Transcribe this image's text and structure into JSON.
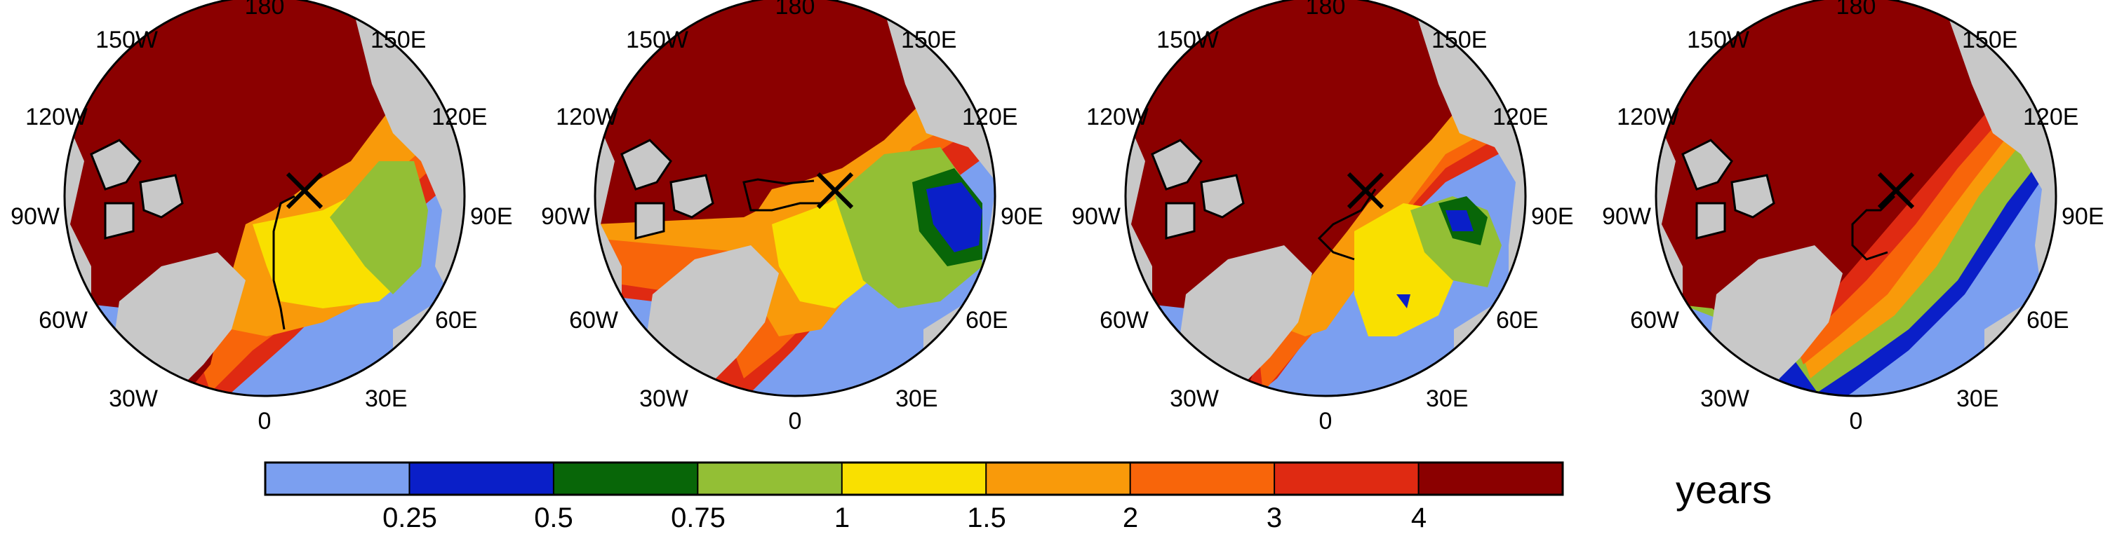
{
  "maps": [
    {
      "id": "map-1",
      "longitude_labels": [
        "180",
        "150E",
        "120E",
        "90E",
        "60E",
        "30E",
        "0",
        "30W",
        "60W",
        "90W",
        "120W",
        "150W"
      ]
    },
    {
      "id": "map-2",
      "longitude_labels": [
        "180",
        "150E",
        "120E",
        "90E",
        "60E",
        "30E",
        "0",
        "30W",
        "60W",
        "90W",
        "120W",
        "150W"
      ]
    },
    {
      "id": "map-3",
      "longitude_labels": [
        "180",
        "150E",
        "120E",
        "90E",
        "60E",
        "30E",
        "0",
        "30W",
        "60W",
        "90W",
        "120W",
        "150W"
      ]
    },
    {
      "id": "map-4",
      "longitude_labels": [
        "180",
        "150E",
        "120E",
        "90E",
        "60E",
        "30E",
        "0",
        "30W",
        "60W",
        "90W",
        "120W",
        "150W"
      ]
    }
  ],
  "colorbar": {
    "colors": [
      "#7b9ff0",
      "#0a1fc8",
      "#086608",
      "#93bf35",
      "#f9e000",
      "#f99a0a",
      "#f8650a",
      "#df2a12",
      "#8b0000"
    ],
    "tick_labels": [
      "0.25",
      "0.5",
      "0.75",
      "1",
      "1.5",
      "2",
      "3",
      "4"
    ],
    "units": "years"
  },
  "legend_colors": {
    "land": "#c8c8c8",
    "old_ice": "#8b0000",
    "open_water": "#7b9ff0"
  },
  "marker": "x-icon"
}
